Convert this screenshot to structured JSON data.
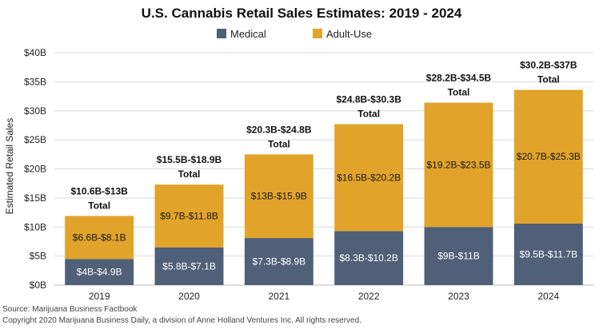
{
  "chart_data": {
    "type": "bar",
    "stacked": true,
    "title": "U.S. Cannabis Retail Sales Estimates: 2019 - 2024",
    "ylabel": "Estimated Retail Sales",
    "xlabel": "",
    "ylim": [
      0,
      40
    ],
    "yticks": [
      0,
      5,
      10,
      15,
      20,
      25,
      30,
      35,
      40
    ],
    "ytick_labels": [
      "$0B",
      "$5B",
      "$10B",
      "$15B",
      "$20B",
      "$25B",
      "$30B",
      "$35B",
      "$40B"
    ],
    "grid": true,
    "legend_position": "top-center",
    "categories": [
      "2019",
      "2020",
      "2021",
      "2022",
      "2023",
      "2024"
    ],
    "series": [
      {
        "name": "Medical",
        "color": "#4f6078",
        "values": [
          4.5,
          6.5,
          8.1,
          9.3,
          10.0,
          10.6
        ],
        "labels": [
          "$4B-$4.9B",
          "$5.8B-$7.1B",
          "$7.3B-$8.9B",
          "$8.3B-$10.2B",
          "$9B-$11B",
          "$9.5B-$11.7B"
        ]
      },
      {
        "name": "Adult-Use",
        "color": "#e1a32a",
        "values": [
          7.4,
          10.8,
          14.4,
          18.4,
          21.4,
          23.0
        ],
        "labels": [
          "$6.6B-$8.1B",
          "$9.7B-$11.8B",
          "$13B-$15.9B",
          "$16.5B-$20.2B",
          "$19.2B-$23.5B",
          "$20.7B-$25.3B"
        ]
      }
    ],
    "totals": [
      {
        "range": "$10.6B-$13B",
        "label": "Total"
      },
      {
        "range": "$15.5B-$18.9B",
        "label": "Total"
      },
      {
        "range": "$20.3B-$24.8B",
        "label": "Total"
      },
      {
        "range": "$24.8B-$30.3B",
        "label": "Total"
      },
      {
        "range": "$28.2B-$34.5B",
        "label": "Total"
      },
      {
        "range": "$30.2B-$37B",
        "label": "Total"
      }
    ]
  },
  "footer": {
    "source": "Source: Marijuana Business Factbook",
    "copyright": "Copyright 2020 Marijuana Business Daily, a division of Anne Holland Ventures Inc. All rights reserved."
  }
}
